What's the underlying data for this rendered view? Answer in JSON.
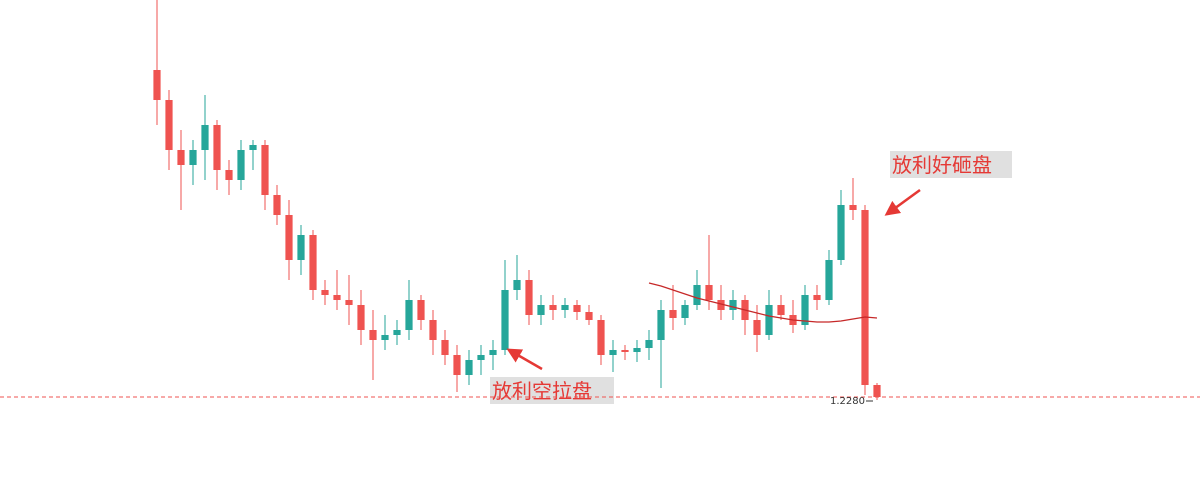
{
  "chart_data": {
    "type": "candlestick",
    "up_color": "#26a69a",
    "down_color": "#ef5350",
    "ylim": [
      1.127,
      1.625
    ],
    "open": [
      1.555,
      1.525,
      1.475,
      1.46,
      1.475,
      1.5,
      1.455,
      1.445,
      1.475,
      1.48,
      1.43,
      1.41,
      1.365,
      1.39,
      1.335,
      1.33,
      1.325,
      1.32,
      1.295,
      1.285,
      1.29,
      1.295,
      1.325,
      1.305,
      1.285,
      1.27,
      1.25,
      1.265,
      1.27,
      1.275,
      1.335,
      1.345,
      1.31,
      1.32,
      1.315,
      1.32,
      1.313,
      1.305,
      1.27,
      1.275,
      1.273,
      1.277,
      1.285,
      1.315,
      1.307,
      1.32,
      1.34,
      1.325,
      1.315,
      1.325,
      1.305,
      1.29,
      1.32,
      1.31,
      1.3,
      1.33,
      1.325,
      1.365,
      1.42,
      1.415,
      1.24
    ],
    "high": [
      1.625,
      1.535,
      1.495,
      1.485,
      1.53,
      1.505,
      1.465,
      1.485,
      1.485,
      1.485,
      1.44,
      1.425,
      1.4,
      1.395,
      1.345,
      1.355,
      1.35,
      1.335,
      1.315,
      1.31,
      1.305,
      1.345,
      1.33,
      1.315,
      1.295,
      1.28,
      1.275,
      1.28,
      1.285,
      1.365,
      1.37,
      1.355,
      1.33,
      1.33,
      1.327,
      1.325,
      1.32,
      1.31,
      1.285,
      1.28,
      1.285,
      1.295,
      1.325,
      1.34,
      1.325,
      1.355,
      1.39,
      1.34,
      1.335,
      1.33,
      1.32,
      1.335,
      1.33,
      1.325,
      1.34,
      1.34,
      1.375,
      1.435,
      1.447,
      1.42,
      1.242
    ],
    "low": [
      1.5,
      1.455,
      1.415,
      1.44,
      1.445,
      1.435,
      1.43,
      1.435,
      1.455,
      1.415,
      1.4,
      1.345,
      1.35,
      1.325,
      1.32,
      1.315,
      1.3,
      1.28,
      1.245,
      1.275,
      1.28,
      1.285,
      1.295,
      1.27,
      1.26,
      1.233,
      1.24,
      1.25,
      1.255,
      1.27,
      1.325,
      1.3,
      1.3,
      1.305,
      1.307,
      1.305,
      1.3,
      1.26,
      1.253,
      1.265,
      1.263,
      1.265,
      1.237,
      1.295,
      1.3,
      1.315,
      1.315,
      1.305,
      1.305,
      1.29,
      1.273,
      1.285,
      1.305,
      1.292,
      1.295,
      1.315,
      1.32,
      1.36,
      1.405,
      1.23,
      1.225
    ],
    "close": [
      1.525,
      1.475,
      1.46,
      1.475,
      1.5,
      1.455,
      1.445,
      1.475,
      1.48,
      1.43,
      1.41,
      1.365,
      1.39,
      1.335,
      1.33,
      1.325,
      1.32,
      1.295,
      1.285,
      1.29,
      1.295,
      1.325,
      1.305,
      1.285,
      1.27,
      1.25,
      1.265,
      1.27,
      1.275,
      1.335,
      1.345,
      1.31,
      1.32,
      1.315,
      1.32,
      1.313,
      1.305,
      1.27,
      1.275,
      1.273,
      1.277,
      1.285,
      1.315,
      1.307,
      1.32,
      1.34,
      1.325,
      1.315,
      1.325,
      1.305,
      1.29,
      1.32,
      1.31,
      1.3,
      1.33,
      1.325,
      1.365,
      1.42,
      1.415,
      1.24,
      1.228
    ],
    "ma": {
      "color": "#c62828",
      "values": [
        null,
        null,
        null,
        null,
        null,
        null,
        null,
        null,
        null,
        null,
        null,
        null,
        null,
        null,
        null,
        null,
        null,
        null,
        null,
        null,
        null,
        null,
        null,
        null,
        null,
        null,
        null,
        null,
        null,
        null,
        null,
        null,
        null,
        null,
        null,
        null,
        null,
        null,
        null,
        null,
        null,
        1.342,
        1.339,
        1.335,
        1.331,
        1.327,
        1.324,
        1.321,
        1.318,
        1.315,
        1.312,
        1.309,
        1.307,
        1.305,
        1.304,
        1.303,
        1.303,
        1.304,
        1.306,
        1.308,
        1.307
      ]
    },
    "last_price": {
      "value": 1.228,
      "label": "1.2280"
    },
    "annotations": [
      {
        "text": "放利空拉盘"
      },
      {
        "text": "放利好砸盘"
      }
    ]
  }
}
